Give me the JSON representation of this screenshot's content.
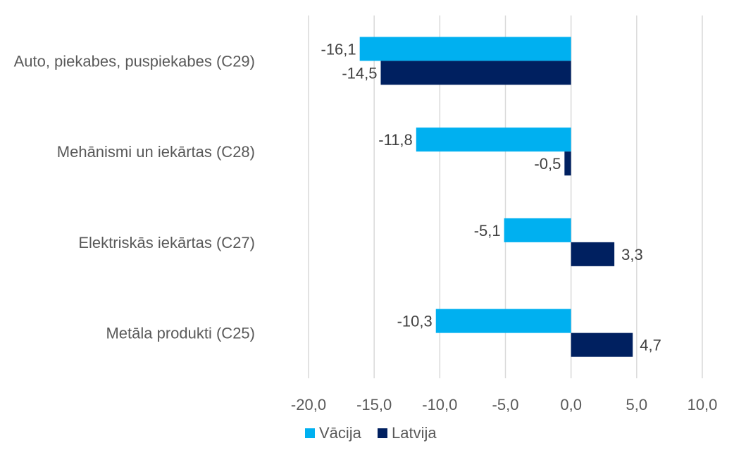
{
  "chart_data": {
    "type": "bar",
    "orientation": "horizontal",
    "title": "",
    "xlabel": "",
    "ylabel": "",
    "categories": [
      "Auto, piekabes, puspiekabes (C29)",
      "Mehānismi un iekārtas (C28)",
      "Elektriskās iekārtas (C27)",
      "Metāla produkti (C25)"
    ],
    "series": [
      {
        "name": "Vācija",
        "values": [
          -16.1,
          -11.8,
          -5.1,
          -10.3
        ],
        "labels": [
          "-16,1",
          "-11,8",
          "-5,1",
          "-10,3"
        ],
        "color": "#00b0f0"
      },
      {
        "name": "Latvija",
        "values": [
          -14.5,
          -0.5,
          3.3,
          4.7
        ],
        "labels": [
          "-14,5",
          "-0,5",
          "3,3",
          "4,7"
        ],
        "color": "#002060"
      }
    ],
    "xlim": [
      -20,
      10
    ],
    "xticks": [
      -20,
      -15,
      -10,
      -5,
      0,
      5,
      10
    ],
    "xtick_labels": [
      "-20,0",
      "-15,0",
      "-10,0",
      "-5,0",
      "0,0",
      "5,0",
      "10,0"
    ],
    "grid": true,
    "legend_position": "bottom"
  }
}
